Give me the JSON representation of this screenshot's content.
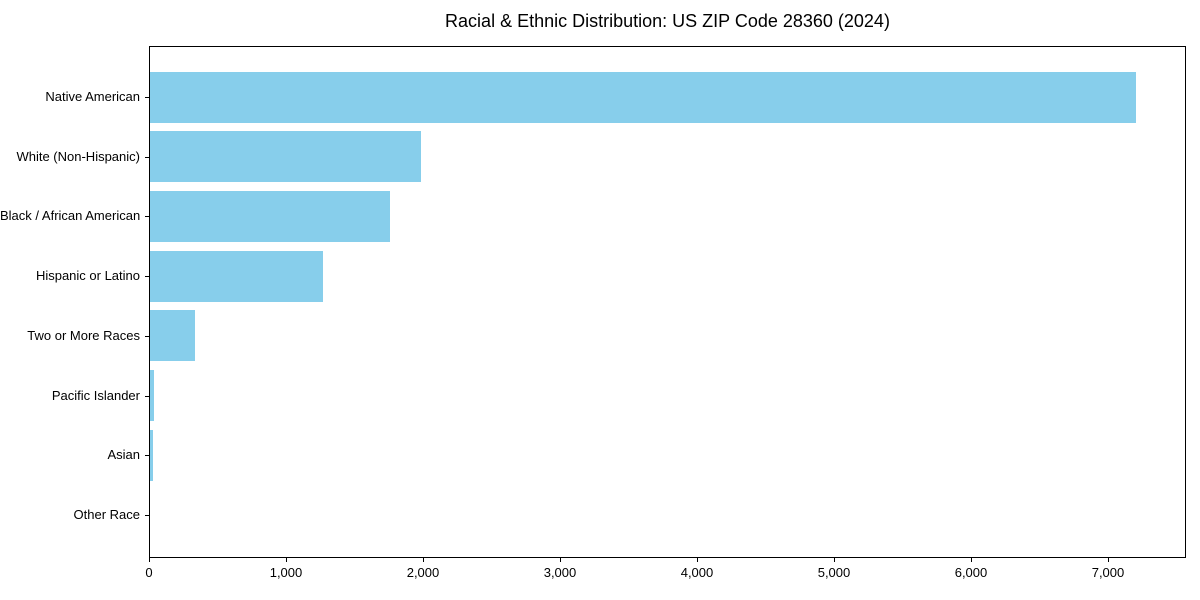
{
  "figure": {
    "background": "#ffffff"
  },
  "chart_data": {
    "type": "bar",
    "orientation": "horizontal",
    "title": "Racial & Ethnic Distribution: US ZIP Code 28360 (2024)",
    "xlabel": "",
    "ylabel": "",
    "categories": [
      "Native American",
      "White (Non-Hispanic)",
      "Black / African American",
      "Hispanic or Latino",
      "Two or More Races",
      "Pacific Islander",
      "Asian",
      "Other Race"
    ],
    "values": [
      7200,
      1975,
      1750,
      1260,
      330,
      30,
      20,
      0
    ],
    "xlim": [
      0,
      7570
    ],
    "x_ticks": [
      0,
      1000,
      2000,
      3000,
      4000,
      5000,
      6000,
      7000
    ],
    "x_tick_labels": [
      "0",
      "1,000",
      "2,000",
      "3,000",
      "4,000",
      "5,000",
      "6,000",
      "7,000"
    ],
    "bar_color": "#87CEEB",
    "axis_color": "#000000",
    "text_color": "#000000",
    "grid": false,
    "legend": null
  }
}
